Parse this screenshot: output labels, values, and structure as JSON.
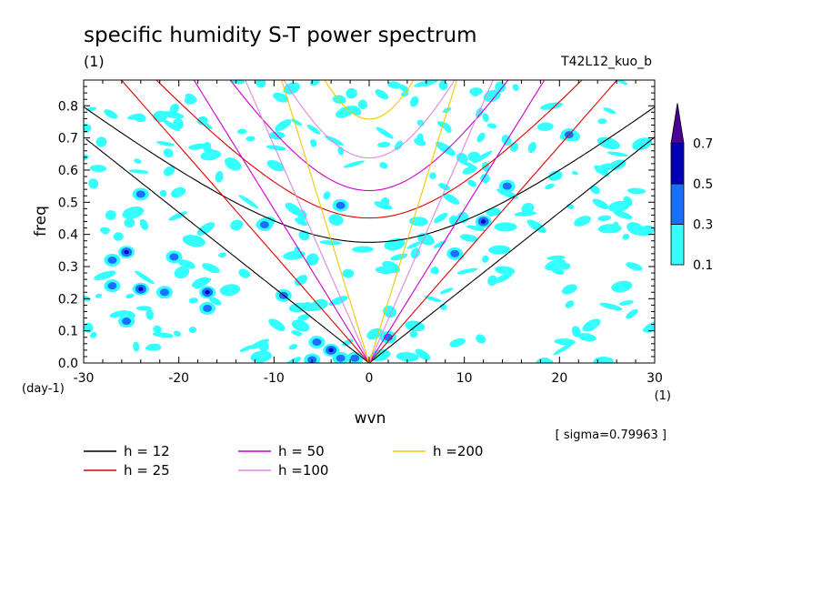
{
  "chart_data": {
    "type": "heatmap",
    "title": "specific humidity S-T power spectrum",
    "subtitle": "(1)",
    "run_label": "T42L12_kuo_b",
    "xlabel": "wvn",
    "x_unit": "(1)",
    "ylabel": "freq",
    "y_unit": "(day-1)",
    "xlim": [
      -30,
      30
    ],
    "ylim": [
      0,
      0.88
    ],
    "x_ticks": [
      -30,
      -20,
      -10,
      0,
      10,
      20,
      30
    ],
    "y_ticks": [
      0.0,
      0.1,
      0.2,
      0.3,
      0.4,
      0.5,
      0.6,
      0.7,
      0.8
    ],
    "x_tick_labels": [
      "-30",
      "-20",
      "-10",
      "0",
      "10",
      "20",
      "30"
    ],
    "y_tick_labels": [
      "0.0",
      "0.1",
      "0.2",
      "0.3",
      "0.4",
      "0.5",
      "0.6",
      "0.7",
      "0.8"
    ],
    "sigma_note": "[ sigma=0.79963 ]",
    "colorbar": {
      "levels": [
        0.1,
        0.3,
        0.5,
        0.7
      ],
      "level_labels": [
        "0.1",
        "0.3",
        "0.5",
        "0.7"
      ],
      "colors": [
        "#33ffff",
        "#1a6fff",
        "#0000b4",
        "#4b0096"
      ]
    },
    "dispersion_curves": [
      {
        "name": "h = 12",
        "h": 12,
        "color": "#000000"
      },
      {
        "name": "h = 25",
        "h": 25,
        "color": "#dd0000"
      },
      {
        "name": "h = 50",
        "h": 50,
        "color": "#cc00cc"
      },
      {
        "name": "h =100",
        "h": 100,
        "color": "#dd88dd"
      },
      {
        "name": "h =200",
        "h": 200,
        "color": "#f0c800"
      }
    ],
    "patches": [
      {
        "x": -25.5,
        "y": 0.345,
        "level": 0.5
      },
      {
        "x": -27,
        "y": 0.32,
        "level": 0.3
      },
      {
        "x": -24,
        "y": 0.23,
        "level": 0.5
      },
      {
        "x": -27,
        "y": 0.24,
        "level": 0.3
      },
      {
        "x": -21.5,
        "y": 0.22,
        "level": 0.3
      },
      {
        "x": -17,
        "y": 0.22,
        "level": 0.5
      },
      {
        "x": -17,
        "y": 0.17,
        "level": 0.3
      },
      {
        "x": -25.5,
        "y": 0.13,
        "level": 0.3
      },
      {
        "x": -20.5,
        "y": 0.33,
        "level": 0.3
      },
      {
        "x": -5.5,
        "y": 0.065,
        "level": 0.3
      },
      {
        "x": -4,
        "y": 0.04,
        "level": 0.5
      },
      {
        "x": -6,
        "y": 0.01,
        "level": 0.3
      },
      {
        "x": -3,
        "y": 0.015,
        "level": 0.3
      },
      {
        "x": -3,
        "y": 0.49,
        "level": 0.3
      },
      {
        "x": 9,
        "y": 0.34,
        "level": 0.3
      },
      {
        "x": 12,
        "y": 0.44,
        "level": 0.5
      },
      {
        "x": 14.5,
        "y": 0.55,
        "level": 0.3
      },
      {
        "x": 21,
        "y": 0.71,
        "level": 0.3
      },
      {
        "x": -9,
        "y": 0.21,
        "level": 0.3
      },
      {
        "x": -24,
        "y": 0.525,
        "level": 0.3
      },
      {
        "x": -1.5,
        "y": 0.015,
        "level": 0.3
      },
      {
        "x": -11,
        "y": 0.43,
        "level": 0.3
      },
      {
        "x": 2,
        "y": 0.08,
        "level": 0.3
      }
    ]
  }
}
